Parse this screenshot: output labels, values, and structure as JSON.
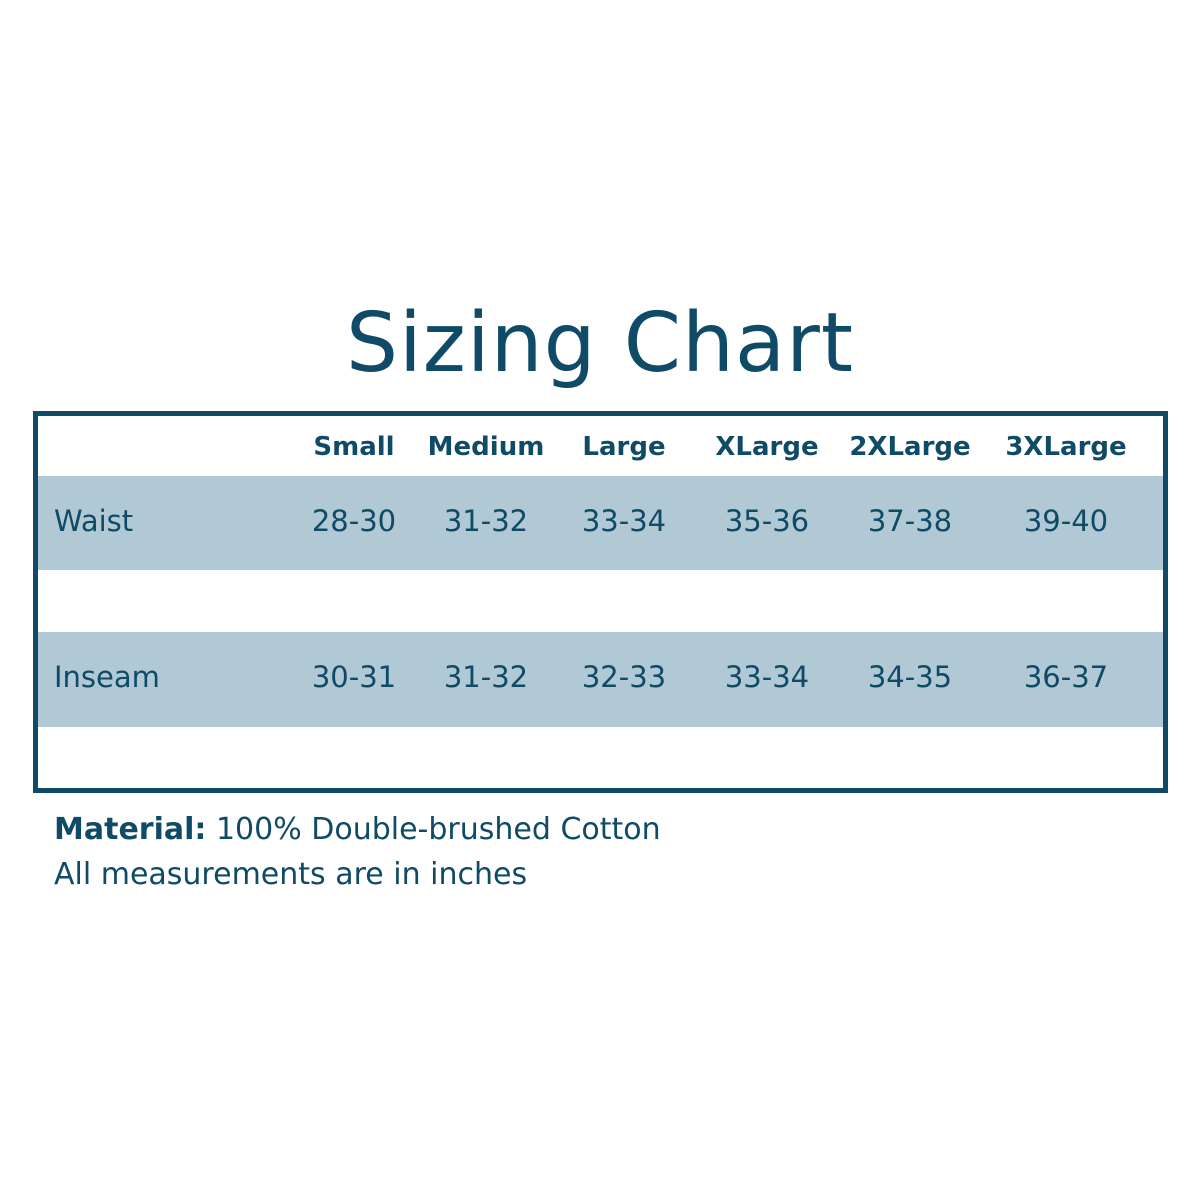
{
  "title": "Sizing Chart",
  "colors": {
    "primary": "#0f4a66",
    "band": "#b1c9d5"
  },
  "chart_data": {
    "type": "table",
    "title": "Sizing Chart",
    "columns": [
      "Small",
      "Medium",
      "Large",
      "XLarge",
      "2XLarge",
      "3XLarge"
    ],
    "rows": [
      {
        "label": "Waist",
        "values": [
          "28-30",
          "31-32",
          "33-34",
          "35-36",
          "37-38",
          "39-40"
        ]
      },
      {
        "label": "Inseam",
        "values": [
          "30-31",
          "31-32",
          "32-33",
          "33-34",
          "34-35",
          "36-37"
        ]
      }
    ]
  },
  "footer": {
    "material_label": "Material:",
    "material_value": "100% Double-brushed Cotton",
    "note": "All measurements are in inches"
  }
}
